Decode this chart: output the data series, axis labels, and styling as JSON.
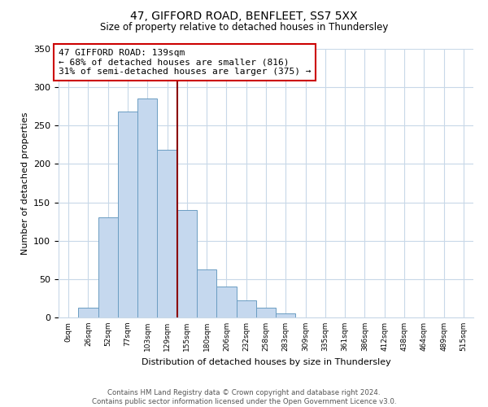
{
  "title": "47, GIFFORD ROAD, BENFLEET, SS7 5XX",
  "subtitle": "Size of property relative to detached houses in Thundersley",
  "xlabel": "Distribution of detached houses by size in Thundersley",
  "ylabel": "Number of detached properties",
  "bar_labels": [
    "0sqm",
    "26sqm",
    "52sqm",
    "77sqm",
    "103sqm",
    "129sqm",
    "155sqm",
    "180sqm",
    "206sqm",
    "232sqm",
    "258sqm",
    "283sqm",
    "309sqm",
    "335sqm",
    "361sqm",
    "386sqm",
    "412sqm",
    "438sqm",
    "464sqm",
    "489sqm",
    "515sqm"
  ],
  "bar_values": [
    0,
    13,
    130,
    268,
    285,
    219,
    140,
    63,
    40,
    22,
    13,
    5,
    0,
    0,
    0,
    0,
    0,
    0,
    0,
    0,
    0
  ],
  "bar_color": "#c5d8ee",
  "bar_edge_color": "#6b9dc2",
  "vline_x": 5.5,
  "vline_color": "#8b0000",
  "annotation_text": "47 GIFFORD ROAD: 139sqm\n← 68% of detached houses are smaller (816)\n31% of semi-detached houses are larger (375) →",
  "annotation_box_color": "#ffffff",
  "annotation_box_edge_color": "#cc0000",
  "ylim": [
    0,
    350
  ],
  "yticks": [
    0,
    50,
    100,
    150,
    200,
    250,
    300,
    350
  ],
  "footer_text": "Contains HM Land Registry data © Crown copyright and database right 2024.\nContains public sector information licensed under the Open Government Licence v3.0.",
  "bg_color": "#ffffff",
  "grid_color": "#c8d8e8",
  "title_fontsize": 10,
  "subtitle_fontsize": 8.5
}
